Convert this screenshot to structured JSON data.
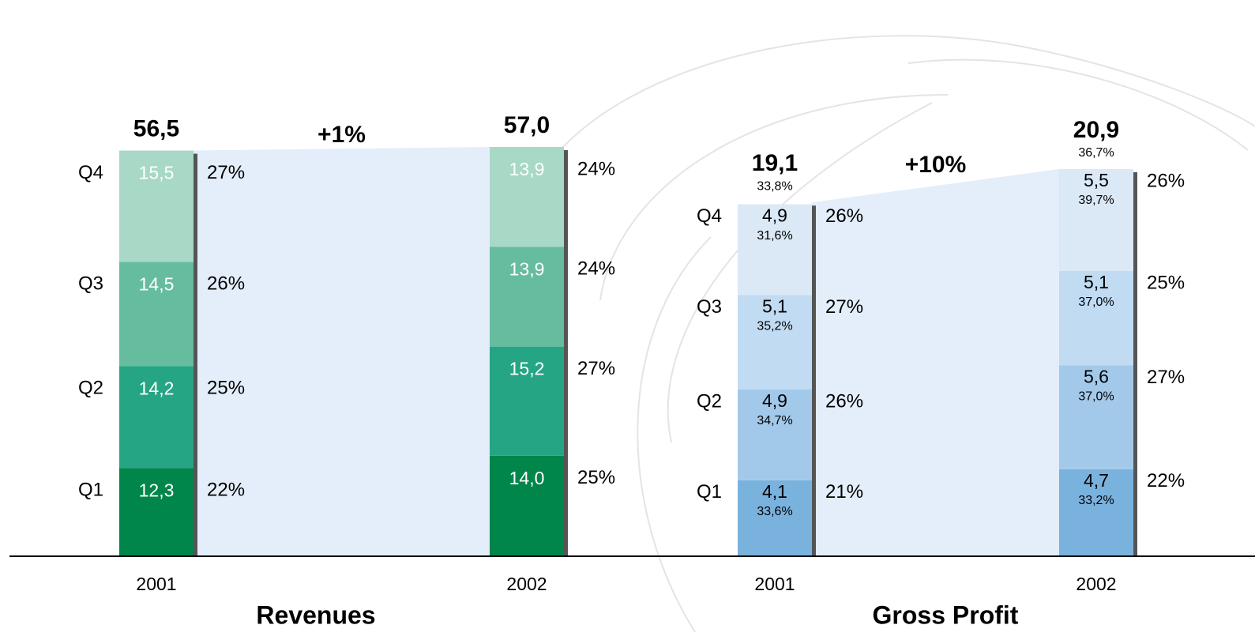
{
  "chart_data": [
    {
      "type": "bar",
      "stacked": true,
      "title": "Revenues",
      "categories": [
        "2001",
        "2002"
      ],
      "series": [
        {
          "name": "Q1",
          "color": "#00854a",
          "values": [
            12.3,
            14.0
          ],
          "value_labels": [
            "12,3",
            "14,0"
          ],
          "share_labels": [
            "22%",
            "25%"
          ]
        },
        {
          "name": "Q2",
          "color": "#26a584",
          "values": [
            14.2,
            15.2
          ],
          "value_labels": [
            "14,2",
            "15,2"
          ],
          "share_labels": [
            "25%",
            "27%"
          ]
        },
        {
          "name": "Q3",
          "color": "#66bc9f",
          "values": [
            14.5,
            13.9
          ],
          "value_labels": [
            "14,5",
            "13,9"
          ],
          "share_labels": [
            "26%",
            "24%"
          ]
        },
        {
          "name": "Q4",
          "color": "#a8d8c6",
          "values": [
            15.5,
            13.9
          ],
          "value_labels": [
            "15,5",
            "13,9"
          ],
          "share_labels": [
            "27%",
            "24%"
          ]
        }
      ],
      "label_color": "#ffffff",
      "totals": [
        56.5,
        57.0
      ],
      "total_labels": [
        "56,5",
        "57,0"
      ],
      "growth": "+1%"
    },
    {
      "type": "bar",
      "stacked": true,
      "title": "Gross Profit",
      "categories": [
        "2001",
        "2002"
      ],
      "series": [
        {
          "name": "Q1",
          "color": "#7ab2de",
          "values": [
            4.1,
            4.7
          ],
          "value_labels": [
            "4,1",
            "4,7"
          ],
          "margin_labels": [
            "33,6%",
            "33,2%"
          ],
          "share_labels": [
            "21%",
            "22%"
          ]
        },
        {
          "name": "Q2",
          "color": "#a3c9ea",
          "values": [
            4.9,
            5.6
          ],
          "value_labels": [
            "4,9",
            "5,6"
          ],
          "margin_labels": [
            "34,7%",
            "37,0%"
          ],
          "share_labels": [
            "26%",
            "27%"
          ]
        },
        {
          "name": "Q3",
          "color": "#c0dbf2",
          "values": [
            5.1,
            5.1
          ],
          "value_labels": [
            "5,1",
            "5,1"
          ],
          "margin_labels": [
            "35,2%",
            "37,0%"
          ],
          "share_labels": [
            "27%",
            "25%"
          ]
        },
        {
          "name": "Q4",
          "color": "#dbe9f7",
          "values": [
            4.9,
            5.5
          ],
          "value_labels": [
            "4,9",
            "5,5"
          ],
          "margin_labels": [
            "31,6%",
            "39,7%"
          ],
          "share_labels": [
            "26%",
            "26%"
          ]
        }
      ],
      "label_color": "#000000",
      "totals": [
        19.1,
        20.9
      ],
      "total_labels": [
        "19,1",
        "20,9"
      ],
      "total_margin_labels": [
        "33,8%",
        "36,7%"
      ],
      "growth": "+10%"
    }
  ]
}
